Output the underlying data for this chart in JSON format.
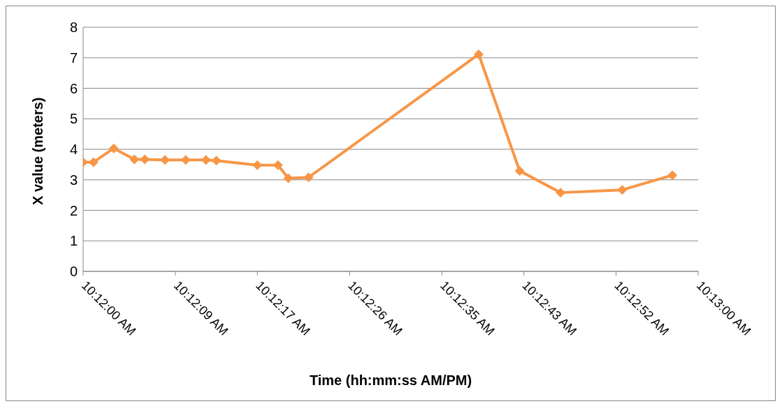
{
  "chart_data": {
    "type": "line",
    "xlabel": "Time (hh:mm:ss AM/PM)",
    "ylabel": "X value (meters)",
    "x": [
      10.2,
      10.20028,
      10.20083,
      10.20139,
      10.20167,
      10.20222,
      10.20278,
      10.20333,
      10.20361,
      10.20472,
      10.20528,
      10.20556,
      10.20611,
      10.21072,
      10.21183,
      10.21294,
      10.21461,
      10.21597
    ],
    "series": [
      {
        "color": "#f79646",
        "values": [
          3.58,
          3.58,
          4.03,
          3.67,
          3.67,
          3.65,
          3.65,
          3.65,
          3.63,
          3.48,
          3.48,
          3.05,
          3.08,
          7.11,
          3.29,
          2.58,
          2.67,
          3.15
        ]
      }
    ],
    "xlim": [
      10.2,
      10.216667
    ],
    "xticks": [
      {
        "value": 10.2,
        "label": "10:12:00 AM"
      },
      {
        "value": 10.2025,
        "label": "10:12:09 AM"
      },
      {
        "value": 10.204722,
        "label": "10:12:17 AM"
      },
      {
        "value": 10.207222,
        "label": "10:12:26 AM"
      },
      {
        "value": 10.209722,
        "label": "10:12:35 AM"
      },
      {
        "value": 10.211944,
        "label": "10:12:43 AM"
      },
      {
        "value": 10.214444,
        "label": "10:12:52 AM"
      },
      {
        "value": 10.216667,
        "label": "10:13:00 AM"
      }
    ],
    "ylim": [
      0,
      8
    ],
    "yticks": [
      0,
      1,
      2,
      3,
      4,
      5,
      6,
      7,
      8
    ],
    "grid": "y",
    "legend": false,
    "marker": "diamond",
    "line_style": "solid"
  }
}
